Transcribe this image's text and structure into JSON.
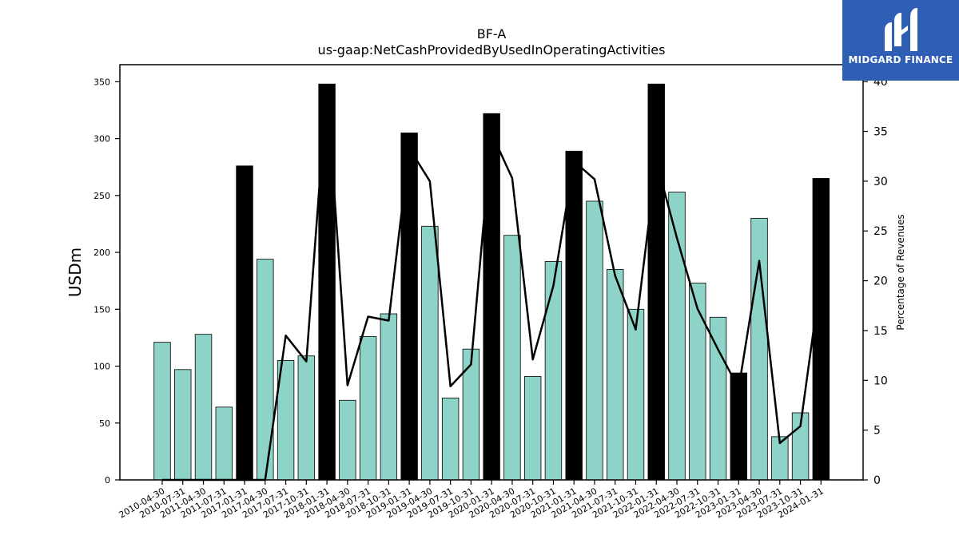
{
  "chart_data": {
    "type": "bar",
    "title": "BF-A",
    "subtitle": "us-gaap:NetCashProvidedByUsedInOperatingActivities",
    "ylabel": "USDm",
    "y2label": "Percentage of Revenues",
    "ylim": [
      0,
      365
    ],
    "y2lim": [
      0,
      41.7
    ],
    "yticks": [
      0,
      50,
      100,
      150,
      200,
      250,
      300,
      350
    ],
    "y2ticks": [
      0,
      5,
      10,
      15,
      20,
      25,
      30,
      35,
      40
    ],
    "categories": [
      "2010-04-30",
      "2010-07-31",
      "2011-04-30",
      "2011-07-31",
      "2017-01-31",
      "2017-04-30",
      "2017-07-31",
      "2017-10-31",
      "2018-01-31",
      "2018-04-30",
      "2018-07-31",
      "2018-10-31",
      "2019-01-31",
      "2019-04-30",
      "2019-07-31",
      "2019-10-31",
      "2020-01-31",
      "2020-04-30",
      "2020-07-31",
      "2020-10-31",
      "2021-01-31",
      "2021-04-30",
      "2021-07-31",
      "2021-10-31",
      "2022-01-31",
      "2022-04-30",
      "2022-07-31",
      "2022-10-31",
      "2023-01-31",
      "2023-04-30",
      "2023-07-31",
      "2023-10-31",
      "2024-01-31"
    ],
    "series": [
      {
        "type": "bar",
        "values": [
          121,
          97,
          128,
          64,
          276,
          194,
          105,
          109,
          348,
          70,
          126,
          146,
          305,
          223,
          72,
          115,
          322,
          215,
          91,
          192,
          289,
          245,
          185,
          150,
          348,
          253,
          173,
          143,
          94,
          230,
          38,
          59,
          265
        ],
        "highlight": [
          false,
          false,
          false,
          false,
          true,
          false,
          false,
          false,
          true,
          false,
          false,
          false,
          true,
          false,
          false,
          false,
          true,
          false,
          false,
          false,
          true,
          false,
          false,
          false,
          true,
          false,
          false,
          false,
          true,
          false,
          false,
          false,
          true
        ],
        "color": "#8dd3c7",
        "highlight_color": "#000000"
      },
      {
        "type": "line",
        "axis": "right",
        "values": [
          0,
          0,
          0,
          0,
          0,
          0,
          14.5,
          11.9,
          39.6,
          9.5,
          16.4,
          16.0,
          33.3,
          30.0,
          9.4,
          11.6,
          34.8,
          30.3,
          12.1,
          19.5,
          32.0,
          30.2,
          20.5,
          15.1,
          32.0,
          24.3,
          17.2,
          13.1,
          9.2,
          22.0,
          3.7,
          5.4,
          20.5
        ],
        "color": "#000000"
      }
    ],
    "legend": "none",
    "grid": false
  },
  "logo": {
    "brand": "MIDGARD FINANCE"
  }
}
